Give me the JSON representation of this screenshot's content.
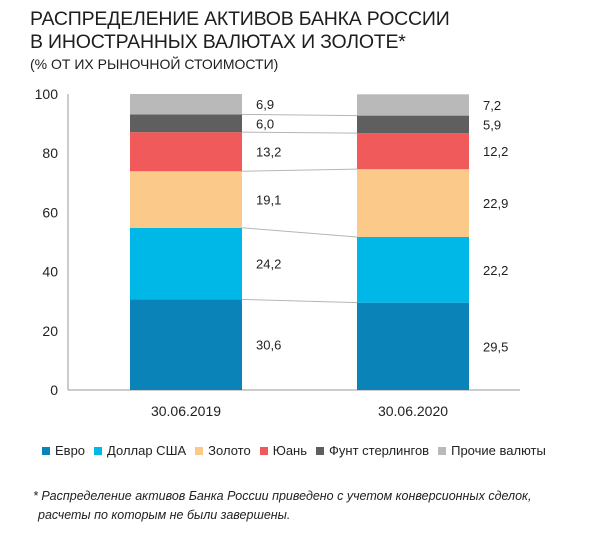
{
  "title_lines": [
    "РАСПРЕДЕЛЕНИЕ АКТИВОВ БАНКА РОССИИ",
    "В ИНОСТРАННЫХ ВАЛЮТАХ И ЗОЛОТЕ*"
  ],
  "subtitle": "(% ОТ ИХ РЫНОЧНОЙ СТОИМОСТИ)",
  "footnote_lines": [
    "* Распределение активов Банка России приведено с учетом конверсионных сделок,",
    "расчеты по которым не были завершены."
  ],
  "colors": {
    "Евро": "#0a84b8",
    "Доллар США": "#00b8e8",
    "Золото": "#fbc98a",
    "Юань": "#f05a5a",
    "Фунт стерлингов": "#5f5f5f",
    "Прочие валюты": "#b9b9b9"
  },
  "chart_data": {
    "type": "bar",
    "stacked": true,
    "categories": [
      "30.06.2019",
      "30.06.2020"
    ],
    "series": [
      {
        "name": "Евро",
        "values": [
          30.6,
          29.5
        ],
        "labels": [
          "30,6",
          "29,5"
        ]
      },
      {
        "name": "Доллар США",
        "values": [
          24.2,
          22.2
        ],
        "labels": [
          "24,2",
          "22,2"
        ]
      },
      {
        "name": "Золото",
        "values": [
          19.1,
          22.9
        ],
        "labels": [
          "19,1",
          "22,9"
        ]
      },
      {
        "name": "Юань",
        "values": [
          13.2,
          12.2
        ],
        "labels": [
          "13,2",
          "12,2"
        ]
      },
      {
        "name": "Фунт стерлингов",
        "values": [
          6.0,
          5.9
        ],
        "labels": [
          "6,0",
          "5,9"
        ]
      },
      {
        "name": "Прочие валюты",
        "values": [
          6.9,
          7.2
        ],
        "labels": [
          "6,9",
          "7,2"
        ]
      }
    ],
    "ylim": [
      0,
      100
    ],
    "yticks": [
      0,
      20,
      40,
      60,
      80,
      100
    ],
    "legend_position": "bottom",
    "grid": false,
    "connector_lines": true
  }
}
